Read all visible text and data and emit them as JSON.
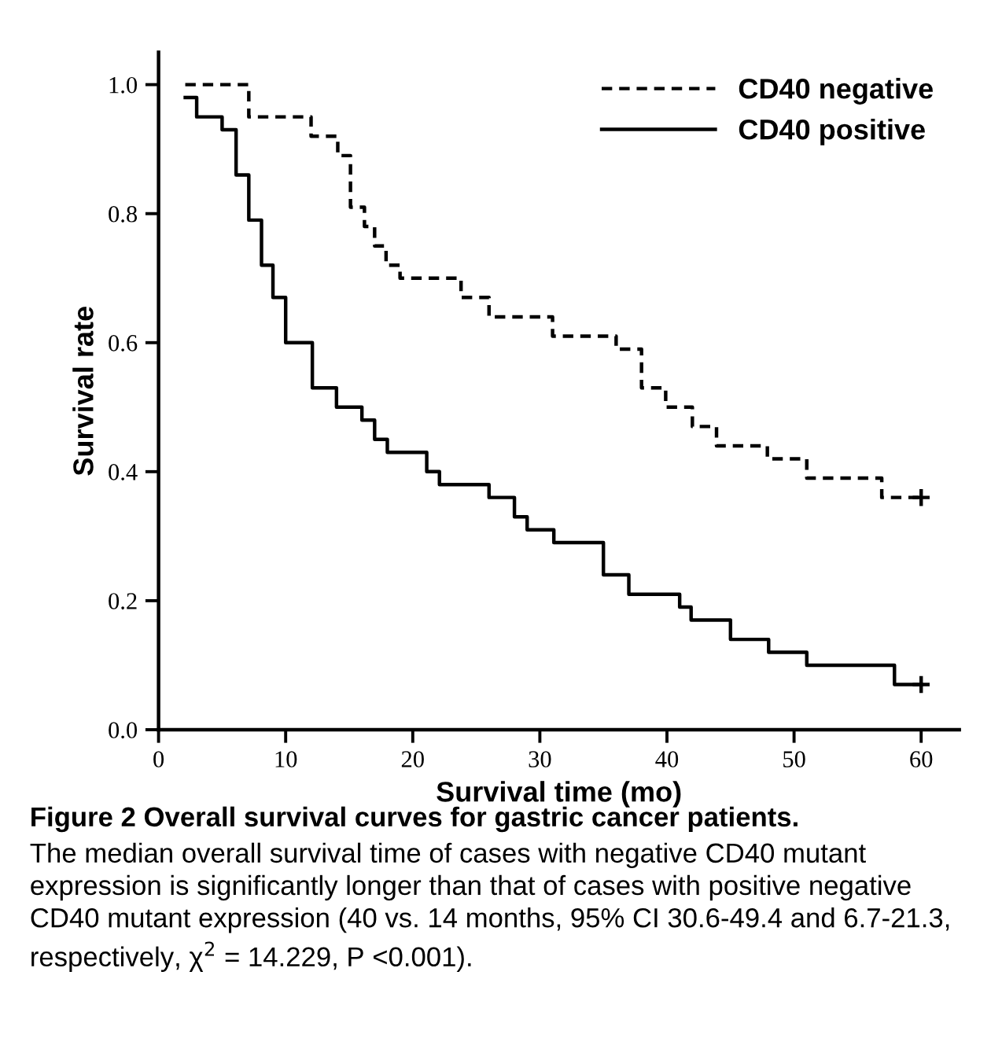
{
  "chart_data": {
    "type": "step",
    "xlabel": "Survival time (mo)",
    "ylabel": "Survival rate",
    "title": "Figure 2 Overall survival curves for gastric cancer patients.",
    "annotations": [
      "The median overall survival time of cases with negative CD40 mutant expression is significantly longer than that of cases with positive negative CD40 mutant expression (40 vs. 14 months, 95% CI 30.6-49.4 and 6.7-21.3, respectively, χ$^{2}$ = 14.229, P <0.001)."
    ],
    "xlim": [
      0,
      63
    ],
    "ylim": [
      0,
      1.05
    ],
    "xticks": [
      0,
      10,
      20,
      30,
      40,
      50,
      60
    ],
    "yticks": [
      {
        "value": 0,
        "label": "0.0"
      },
      {
        "value": 0.2,
        "label": "0.2"
      },
      {
        "value": 0.4,
        "label": "0.4"
      },
      {
        "value": 0.6,
        "label": "0.6"
      },
      {
        "value": 0.8,
        "label": "0.8"
      },
      {
        "value": 1.0,
        "label": "1.0"
      }
    ],
    "grid": false,
    "legend": "top right",
    "series": [
      {
        "name": "CD40 negative",
        "color": "#000000",
        "line_style": "dashed",
        "x": [
          2.1,
          7.1,
          12.0,
          14.1,
          15.1,
          16.2,
          17.0,
          17.9,
          19.0,
          23.8,
          26.0,
          31.0,
          36.0,
          38.0,
          39.9,
          42.0,
          43.9,
          47.9,
          51.0,
          56.9,
          60
        ],
        "values": [
          1.0,
          0.95,
          0.92,
          0.89,
          0.81,
          0.78,
          0.75,
          0.72,
          0.7,
          0.67,
          0.64,
          0.61,
          0.59,
          0.53,
          0.5,
          0.47,
          0.44,
          0.42,
          0.39,
          0.36,
          0.36
        ]
      },
      {
        "name": "CD40 positive",
        "color": "#000000",
        "line_style": "solid",
        "x": [
          2.1,
          3.0,
          5.0,
          6.1,
          7.1,
          8.1,
          9.0,
          10.0,
          12.1,
          14.0,
          16.0,
          17.0,
          18.0,
          21.1,
          22.1,
          26.0,
          28.0,
          29.0,
          31.1,
          35.0,
          37.0,
          41.0,
          41.9,
          45.0,
          48.0,
          51.0,
          57.9,
          60
        ],
        "values": [
          0.98,
          0.95,
          0.93,
          0.86,
          0.79,
          0.72,
          0.67,
          0.6,
          0.53,
          0.5,
          0.48,
          0.45,
          0.43,
          0.4,
          0.38,
          0.36,
          0.33,
          0.31,
          0.29,
          0.24,
          0.21,
          0.19,
          0.17,
          0.14,
          0.12,
          0.1,
          0.07,
          0.07
        ]
      },
      {
        "type": "scatter",
        "color": "#000000",
        "marker": "cross",
        "x": [
          60,
          60
        ],
        "values": [
          0.36,
          0.07
        ]
      }
    ]
  }
}
